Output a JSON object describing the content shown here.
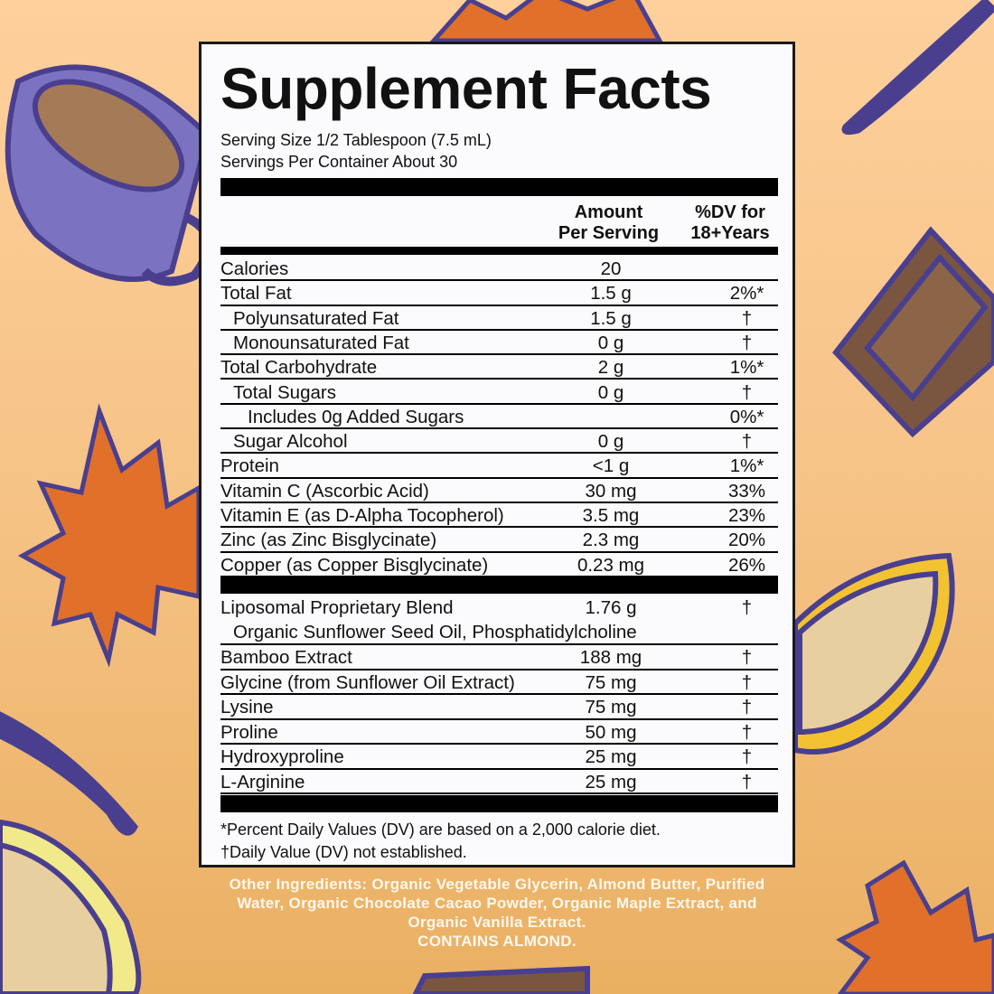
{
  "title": "Supplement Facts",
  "serving_size": "Serving Size 1/2 Tablespoon (7.5 mL)",
  "servings_per_container": "Servings Per Container About 30",
  "header": {
    "amount_line1": "Amount",
    "amount_line2": "Per Serving",
    "dv_line1": "%DV for",
    "dv_line2": "18+Years"
  },
  "nutrients": [
    {
      "name": "Calories",
      "amount": "20",
      "dv": "",
      "indent": 0
    },
    {
      "name": "Total Fat",
      "amount": "1.5 g",
      "dv": "2%*",
      "indent": 0
    },
    {
      "name": "Polyunsaturated Fat",
      "amount": "1.5 g",
      "dv": "†",
      "indent": 1
    },
    {
      "name": "Monounsaturated Fat",
      "amount": "0 g",
      "dv": "†",
      "indent": 1
    },
    {
      "name": "Total Carbohydrate",
      "amount": "2 g",
      "dv": "1%*",
      "indent": 0
    },
    {
      "name": "Total Sugars",
      "amount": "0 g",
      "dv": "†",
      "indent": 1
    },
    {
      "name": "Includes 0g Added Sugars",
      "amount": "",
      "dv": "0%*",
      "indent": 2
    },
    {
      "name": "Sugar Alcohol",
      "amount": "0 g",
      "dv": "†",
      "indent": 1
    },
    {
      "name": "Protein",
      "amount": "<1 g",
      "dv": "1%*",
      "indent": 0
    },
    {
      "name": "Vitamin C (Ascorbic Acid)",
      "amount": "30 mg",
      "dv": "33%",
      "indent": 0
    },
    {
      "name": "Vitamin E (as D-Alpha Tocopherol)",
      "amount": "3.5 mg",
      "dv": "23%",
      "indent": 0
    },
    {
      "name": "Zinc (as Zinc Bisglycinate)",
      "amount": "2.3 mg",
      "dv": "20%",
      "indent": 0
    },
    {
      "name": "Copper (as Copper Bisglycinate)",
      "amount": "0.23 mg",
      "dv": "26%",
      "indent": 0
    }
  ],
  "blend": {
    "name": "Liposomal Proprietary Blend",
    "amount": "1.76 g",
    "dv": "†",
    "sub": "Organic Sunflower Seed Oil, Phosphatidylcholine"
  },
  "other_rows": [
    {
      "name": "Bamboo Extract",
      "amount": "188 mg",
      "dv": "†"
    },
    {
      "name": "Glycine (from Sunflower Oil Extract)",
      "amount": "75 mg",
      "dv": "†"
    },
    {
      "name": "Lysine",
      "amount": "75 mg",
      "dv": "†"
    },
    {
      "name": "Proline",
      "amount": "50 mg",
      "dv": "†"
    },
    {
      "name": "Hydroxyproline",
      "amount": "25 mg",
      "dv": "†"
    },
    {
      "name": "L-Arginine",
      "amount": "25 mg",
      "dv": "†"
    }
  ],
  "footnote1": "*Percent Daily Values (DV) are based on a 2,000 calorie diet.",
  "footnote2": "†Daily Value (DV) not established.",
  "other_ingredients": [
    "Other Ingredients: Organic Vegetable Glycerin, Almond Butter, Purified",
    "Water, Organic Chocolate Cacao Powder, Organic Maple Extract, and",
    "Organic Vanilla Extract.",
    "CONTAINS ALMOND."
  ],
  "colors": {
    "background_top": "#fdd09c",
    "background_bottom": "#eab062",
    "outline": "#4a3f8f",
    "leaf": "#e0702a",
    "cup": "#7b73c0",
    "chocolate": "#7a5640",
    "cacao": "#f2c230"
  }
}
